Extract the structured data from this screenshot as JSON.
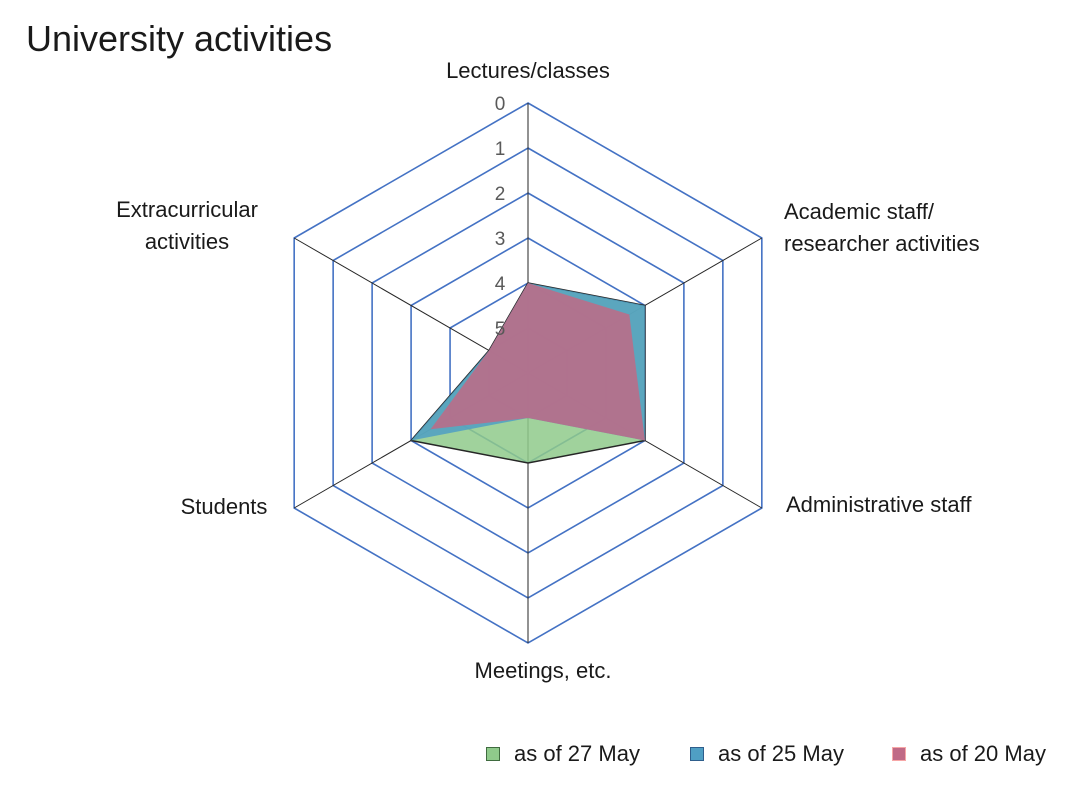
{
  "chart_data": {
    "type": "radar",
    "title": "University activities",
    "axes": [
      "Lectures/classes",
      "Academic staff/ researcher activities",
      "Administrative staff",
      "Meetings, etc.",
      "Students",
      "Extracurricular activities"
    ],
    "axis_label_lines": [
      [
        "Lectures/classes"
      ],
      [
        "Academic staff/",
        "researcher activities"
      ],
      [
        "Administrative staff"
      ],
      [
        "Meetings, etc."
      ],
      [
        "Students"
      ],
      [
        "Extracurricular",
        "activities"
      ]
    ],
    "scale": {
      "ticks": [
        "0",
        "1",
        "2",
        "3",
        "4",
        "5"
      ],
      "reversed": true,
      "max_level": 6
    },
    "series": [
      {
        "name": "as of 27 May",
        "values": [
          4,
          3,
          3,
          4,
          3,
          5
        ],
        "fill": "#8fca8b",
        "swatch_border": "#3f6b3f"
      },
      {
        "name": "as of 25 May",
        "values": [
          4,
          3,
          3,
          5,
          3,
          5
        ],
        "fill": "#4f9fc4",
        "swatch_border": "#2f5e8c"
      },
      {
        "name": "as of 20 May",
        "values": [
          4,
          3.4,
          3,
          5,
          3.5,
          5
        ],
        "fill": "#c06a86",
        "swatch_border": "#f7a7a7"
      }
    ],
    "legend_position": "bottom-right",
    "grid": true
  },
  "colors": {
    "grid": "#4472c4",
    "spoke": "#262626",
    "outline": "#262626"
  }
}
